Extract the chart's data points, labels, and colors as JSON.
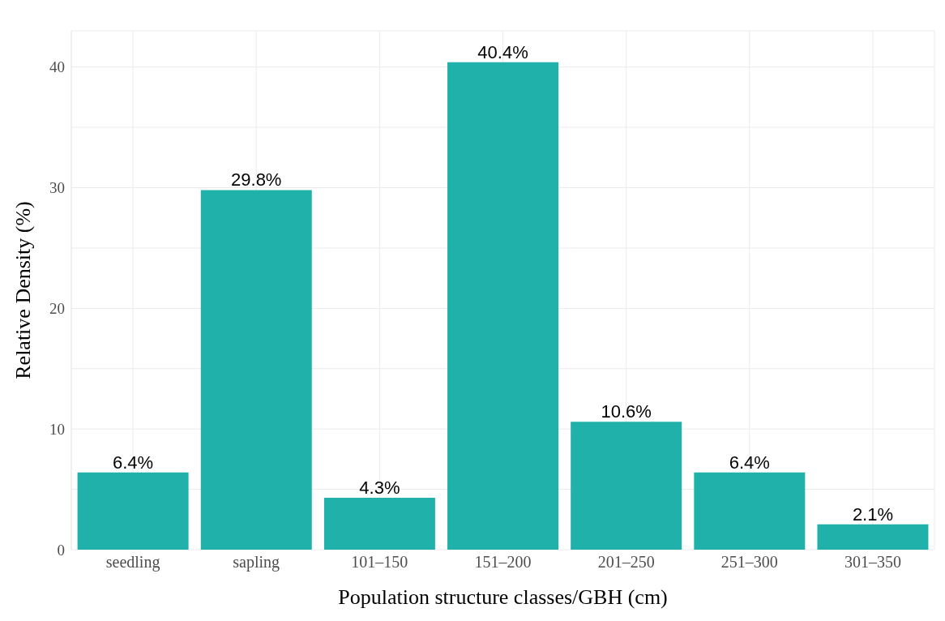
{
  "chart_data": {
    "type": "bar",
    "xlabel": "Population structure classes/GBH (cm)",
    "ylabel": "Relative Density (%)",
    "categories": [
      "seedling",
      "sapling",
      "101–150",
      "151–200",
      "201–250",
      "251–300",
      "301–350"
    ],
    "values": [
      6.4,
      29.8,
      4.3,
      40.4,
      10.6,
      6.4,
      2.1
    ],
    "value_labels": [
      "6.4%",
      "29.8%",
      "4.3%",
      "40.4%",
      "10.6%",
      "6.4%",
      "2.1%"
    ],
    "color": "#20b2aa",
    "ylim": [
      0,
      43
    ],
    "yticks": [
      0,
      {
        "value": 5,
        "label": null
      },
      10,
      {
        "value": 15,
        "label": null
      },
      20,
      {
        "value": 25,
        "label": null
      },
      30,
      {
        "value": 35,
        "label": null
      },
      40
    ],
    "grid": true,
    "legend": false
  }
}
